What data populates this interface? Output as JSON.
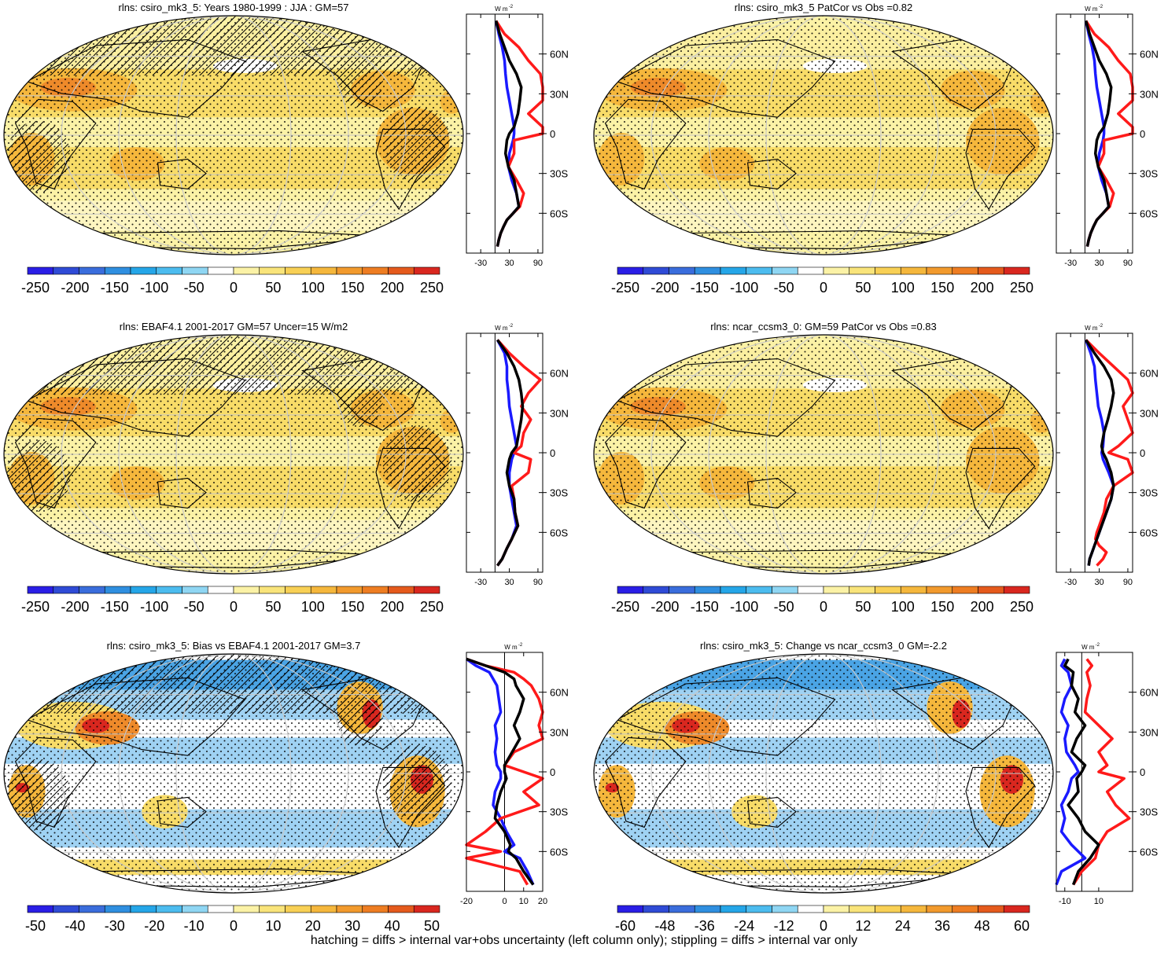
{
  "footnote": "hatching = diffs > internal var+obs uncertainty (left column only); stippling = diffs > internal var only",
  "colors": {
    "white": "#ffffff",
    "light_yellow": "#fbf2a6",
    "yellow": "#f8dc68",
    "orange": "#f5b73c",
    "dark_orange": "#ee8a2a",
    "red": "#d9271f",
    "light_blue": "#9fd2f3",
    "blue": "#4aa4e5",
    "zonal_black": "#000000",
    "zonal_blue": "#1a1aff",
    "zonal_red": "#ff1a1a",
    "graticule": "#c8c8c8"
  },
  "lat_ticks": [
    "60N",
    "30N",
    "0",
    "30S",
    "60S"
  ],
  "panels": [
    {
      "title": "rlns: csiro_mk3_5: Years 1980-1999 : JJA : GM=57",
      "scheme": "abs",
      "hatch": true,
      "colorbar": {
        "labels": [
          "-250",
          "-200",
          "-150",
          "-100",
          "-50",
          "0",
          "50",
          "100",
          "150",
          "200",
          "250"
        ]
      },
      "zonal": {
        "xlim": [
          -60,
          100
        ],
        "ticks": [
          "-30",
          "30",
          "90"
        ],
        "tick_values": [
          -30,
          30,
          90
        ],
        "zero_line": 0,
        "unit": "W m-2"
      }
    },
    {
      "title": "rlns: csiro_mk3_5 PatCor vs Obs =0.82",
      "scheme": "abs",
      "hatch": false,
      "colorbar": {
        "labels": [
          "-250",
          "-200",
          "-150",
          "-100",
          "-50",
          "0",
          "50",
          "100",
          "150",
          "200",
          "250"
        ]
      },
      "zonal": {
        "xlim": [
          -60,
          100
        ],
        "ticks": [
          "-30",
          "30",
          "90"
        ],
        "tick_values": [
          -30,
          30,
          90
        ],
        "zero_line": 0,
        "unit": "W m-2"
      }
    },
    {
      "title": "rlns: EBAF4.1 2001-2017 GM=57 Uncer=15 W/m2",
      "scheme": "abs",
      "hatch": true,
      "colorbar": {
        "labels": [
          "-250",
          "-200",
          "-150",
          "-100",
          "-50",
          "0",
          "50",
          "100",
          "150",
          "200",
          "250"
        ]
      },
      "zonal": {
        "xlim": [
          -60,
          100
        ],
        "ticks": [
          "-30",
          "30",
          "90"
        ],
        "tick_values": [
          -30,
          30,
          90
        ],
        "zero_line": 0,
        "unit": "W m-2"
      }
    },
    {
      "title": "rlns: ncar_ccsm3_0: GM=59 PatCor vs Obs =0.83",
      "scheme": "abs",
      "hatch": false,
      "colorbar": {
        "labels": [
          "-250",
          "-200",
          "-150",
          "-100",
          "-50",
          "0",
          "50",
          "100",
          "150",
          "200",
          "250"
        ]
      },
      "zonal": {
        "xlim": [
          -60,
          100
        ],
        "ticks": [
          "-30",
          "30",
          "90"
        ],
        "tick_values": [
          -30,
          30,
          90
        ],
        "zero_line": 0,
        "unit": "W m-2"
      }
    },
    {
      "title": "rlns: csiro_mk3_5: Bias vs EBAF4.1 2001-2017 GM=3.7",
      "scheme": "diff",
      "hatch": true,
      "colorbar": {
        "labels": [
          "-50",
          "-40",
          "-30",
          "-20",
          "-10",
          "0",
          "10",
          "20",
          "30",
          "40",
          "50"
        ]
      },
      "zonal": {
        "xlim": [
          -20,
          20
        ],
        "ticks": [
          "-20",
          "0",
          "10",
          "20"
        ],
        "tick_values": [
          -20,
          0,
          10,
          20
        ],
        "zero_line": 0,
        "unit": "W m-2"
      }
    },
    {
      "title": "rlns: csiro_mk3_5: Change vs ncar_ccsm3_0 GM=-2.2",
      "scheme": "diff",
      "hatch": false,
      "colorbar": {
        "labels": [
          "-60",
          "-48",
          "-36",
          "-24",
          "-12",
          "0",
          "12",
          "24",
          "36",
          "48",
          "60"
        ]
      },
      "zonal": {
        "xlim": [
          -15,
          30
        ],
        "ticks": [
          "-10",
          "10"
        ],
        "tick_values": [
          -10,
          10
        ],
        "zero_line": 0,
        "unit": "W m-2"
      }
    }
  ],
  "chart_data": [
    {
      "type": "line",
      "title": "rlns: csiro_mk3_5: Years 1980-1999 : JJA : GM=57",
      "xlabel": "W m-2",
      "ylabel": "",
      "xlim": [
        -60,
        100
      ],
      "ylim": [
        -90,
        90
      ],
      "series": [
        {
          "x": [
            2,
            10,
            20,
            30,
            45,
            55,
            52,
            48,
            40,
            30,
            25,
            22,
            28,
            40,
            45,
            50,
            38,
            25,
            18,
            12,
            8,
            5
          ],
          "y": [
            85,
            75,
            65,
            55,
            45,
            35,
            25,
            15,
            5,
            0,
            -5,
            -15,
            -25,
            -35,
            -45,
            -55,
            -60,
            -65,
            -70,
            -75,
            -80,
            -85
          ]
        },
        {
          "x": [
            2,
            8,
            15,
            20,
            22,
            25,
            30,
            35,
            40,
            40,
            38,
            30,
            28,
            35,
            45,
            50,
            38,
            25,
            18,
            12,
            8,
            5
          ],
          "y": [
            85,
            75,
            65,
            55,
            45,
            35,
            25,
            15,
            5,
            0,
            -5,
            -15,
            -25,
            -35,
            -45,
            -55,
            -60,
            -65,
            -70,
            -75,
            -80,
            -85
          ]
        },
        {
          "x": [
            2,
            20,
            50,
            70,
            95,
            100,
            100,
            70,
            100,
            100,
            40,
            40,
            28,
            45,
            60,
            52,
            38,
            25,
            18,
            12,
            8,
            5
          ],
          "y": [
            85,
            75,
            65,
            55,
            45,
            35,
            25,
            15,
            5,
            0,
            -5,
            -15,
            -25,
            -35,
            -45,
            -55,
            -60,
            -65,
            -70,
            -75,
            -80,
            -85
          ]
        }
      ]
    },
    {
      "type": "line",
      "title": "rlns: csiro_mk3_5 PatCor vs Obs =0.82",
      "xlabel": "W m-2",
      "ylabel": "",
      "xlim": [
        -60,
        100
      ],
      "ylim": [
        -90,
        90
      ],
      "series": [
        {
          "x": [
            2,
            10,
            20,
            30,
            45,
            55,
            52,
            48,
            40,
            30,
            25,
            22,
            28,
            40,
            45,
            50,
            38,
            25,
            18,
            12,
            8,
            5
          ],
          "y": [
            85,
            75,
            65,
            55,
            45,
            35,
            25,
            15,
            5,
            0,
            -5,
            -15,
            -25,
            -35,
            -45,
            -55,
            -60,
            -65,
            -70,
            -75,
            -80,
            -85
          ]
        },
        {
          "x": [
            2,
            8,
            15,
            20,
            22,
            25,
            30,
            35,
            40,
            40,
            38,
            30,
            28,
            35,
            45,
            50,
            38,
            25,
            18,
            12,
            8,
            5
          ],
          "y": [
            85,
            75,
            65,
            55,
            45,
            35,
            25,
            15,
            5,
            0,
            -5,
            -15,
            -25,
            -35,
            -45,
            -55,
            -60,
            -65,
            -70,
            -75,
            -80,
            -85
          ]
        },
        {
          "x": [
            2,
            20,
            50,
            70,
            95,
            100,
            100,
            70,
            100,
            100,
            40,
            40,
            28,
            45,
            60,
            52,
            38,
            25,
            18,
            12,
            8,
            5
          ],
          "y": [
            85,
            75,
            65,
            55,
            45,
            35,
            25,
            15,
            5,
            0,
            -5,
            -15,
            -25,
            -35,
            -45,
            -55,
            -60,
            -65,
            -70,
            -75,
            -80,
            -85
          ]
        }
      ]
    },
    {
      "type": "line",
      "title": "rlns: EBAF4.1 2001-2017 GM=57 Uncer=15 W/m2",
      "xlabel": "W m-2",
      "ylabel": "",
      "xlim": [
        -60,
        100
      ],
      "ylim": [
        -90,
        90
      ],
      "series": [
        {
          "x": [
            5,
            25,
            40,
            50,
            55,
            58,
            55,
            50,
            45,
            35,
            30,
            25,
            30,
            40,
            42,
            48,
            35,
            25,
            15,
            5
          ],
          "y": [
            85,
            75,
            65,
            55,
            45,
            35,
            25,
            15,
            5,
            0,
            -5,
            -15,
            -25,
            -35,
            -45,
            -55,
            -65,
            -72,
            -80,
            -85
          ]
        },
        {
          "x": [
            5,
            20,
            25,
            25,
            28,
            30,
            35,
            40,
            45,
            40,
            35,
            30,
            30,
            35,
            40,
            45,
            35,
            25,
            15,
            5
          ],
          "y": [
            85,
            75,
            65,
            55,
            45,
            35,
            25,
            15,
            5,
            0,
            -5,
            -15,
            -25,
            -35,
            -45,
            -55,
            -65,
            -72,
            -80,
            -85
          ]
        },
        {
          "x": [
            5,
            30,
            60,
            95,
            70,
            55,
            75,
            60,
            55,
            40,
            75,
            70,
            35,
            40,
            42,
            48,
            35,
            25,
            15,
            5
          ],
          "y": [
            85,
            75,
            65,
            55,
            45,
            35,
            25,
            15,
            5,
            0,
            -5,
            -15,
            -25,
            -35,
            -45,
            -55,
            -65,
            -72,
            -80,
            -85
          ]
        }
      ]
    },
    {
      "type": "line",
      "title": "rlns: ncar_ccsm3_0: GM=59 PatCor vs Obs =0.83",
      "xlabel": "W m-2",
      "ylabel": "",
      "xlim": [
        -60,
        100
      ],
      "ylim": [
        -90,
        90
      ],
      "series": [
        {
          "x": [
            2,
            20,
            40,
            55,
            60,
            55,
            48,
            40,
            35,
            38,
            45,
            55,
            60,
            55,
            45,
            35,
            30,
            25,
            20,
            15,
            10,
            8
          ],
          "y": [
            85,
            75,
            65,
            55,
            45,
            35,
            25,
            15,
            5,
            0,
            -5,
            -15,
            -25,
            -35,
            -45,
            -55,
            -60,
            -65,
            -70,
            -75,
            -80,
            -85
          ]
        },
        {
          "x": [
            2,
            12,
            20,
            22,
            25,
            28,
            35,
            40,
            38,
            35,
            38,
            50,
            60,
            55,
            45,
            35,
            30,
            25,
            20,
            15,
            10,
            8
          ],
          "y": [
            85,
            75,
            65,
            55,
            45,
            35,
            25,
            15,
            5,
            0,
            -5,
            -15,
            -25,
            -35,
            -45,
            -55,
            -60,
            -65,
            -70,
            -75,
            -80,
            -85
          ]
        },
        {
          "x": [
            2,
            30,
            60,
            90,
            100,
            80,
            90,
            100,
            70,
            50,
            90,
            100,
            60,
            45,
            40,
            30,
            25,
            22,
            30,
            45,
            38,
            25
          ],
          "y": [
            85,
            75,
            65,
            55,
            45,
            35,
            25,
            15,
            5,
            0,
            -5,
            -15,
            -25,
            -35,
            -45,
            -55,
            -60,
            -65,
            -70,
            -75,
            -80,
            -85
          ]
        }
      ]
    },
    {
      "type": "line",
      "title": "rlns: csiro_mk3_5: Bias vs EBAF4.1 2001-2017 GM=3.7",
      "xlabel": "W m-2",
      "ylabel": "",
      "xlim": [
        -20,
        20
      ],
      "ylim": [
        -90,
        90
      ],
      "series": [
        {
          "x": [
            -20,
            -10,
            0,
            5,
            6,
            10,
            8,
            5,
            8,
            4,
            0,
            0,
            1,
            -2,
            -4,
            -5,
            0,
            3,
            2,
            6,
            10,
            15
          ],
          "y": [
            85,
            80,
            75,
            70,
            65,
            55,
            45,
            35,
            25,
            15,
            5,
            0,
            -5,
            -15,
            -25,
            -35,
            -45,
            -55,
            -60,
            -65,
            -75,
            -85
          ]
        },
        {
          "x": [
            -20,
            -15,
            -8,
            -6,
            -4,
            -3,
            -2,
            -5,
            -4,
            -5,
            -4,
            -2,
            -2,
            -5,
            -6,
            -2,
            1,
            5,
            0,
            8,
            12,
            15
          ],
          "y": [
            85,
            80,
            75,
            70,
            65,
            55,
            45,
            35,
            25,
            15,
            5,
            0,
            -5,
            -15,
            -25,
            -35,
            -45,
            -55,
            -60,
            -65,
            -75,
            -85
          ]
        },
        {
          "x": [
            -20,
            -10,
            5,
            10,
            14,
            18,
            20,
            18,
            20,
            5,
            0,
            10,
            20,
            10,
            18,
            -2,
            -10,
            -20,
            -2,
            -20,
            8,
            12
          ],
          "y": [
            85,
            80,
            75,
            70,
            65,
            55,
            45,
            35,
            25,
            15,
            5,
            0,
            -5,
            -15,
            -25,
            -35,
            -45,
            -55,
            -60,
            -65,
            -75,
            -85
          ]
        }
      ]
    },
    {
      "type": "line",
      "title": "rlns: csiro_mk3_5: Change vs ncar_ccsm3_0 GM=-2.2",
      "xlabel": "W m-2",
      "ylabel": "",
      "xlim": [
        -15,
        30
      ],
      "ylim": [
        -90,
        90
      ],
      "series": [
        {
          "x": [
            -8,
            -10,
            -5,
            -6,
            -2,
            -4,
            2,
            -3,
            -6,
            2,
            0,
            -3,
            -2,
            -8,
            -2,
            2,
            10,
            5,
            -2,
            -5
          ],
          "y": [
            85,
            80,
            75,
            65,
            55,
            45,
            35,
            25,
            15,
            5,
            0,
            -5,
            -15,
            -25,
            -35,
            -45,
            -55,
            -65,
            -75,
            -85
          ]
        },
        {
          "x": [
            -10,
            -12,
            -8,
            -6,
            -10,
            -12,
            -8,
            -10,
            -9,
            -4,
            -2,
            -6,
            -8,
            -12,
            -10,
            -12,
            -6,
            2,
            -12,
            -15
          ],
          "y": [
            85,
            80,
            75,
            65,
            55,
            45,
            35,
            25,
            15,
            5,
            0,
            -5,
            -15,
            -25,
            -35,
            -45,
            -55,
            -65,
            -75,
            -85
          ]
        },
        {
          "x": [
            3,
            6,
            3,
            5,
            3,
            2,
            10,
            18,
            10,
            15,
            10,
            25,
            15,
            20,
            28,
            15,
            10,
            8,
            0,
            -5
          ],
          "y": [
            85,
            80,
            75,
            65,
            55,
            45,
            35,
            25,
            15,
            5,
            0,
            -5,
            -15,
            -25,
            -35,
            -45,
            -55,
            -65,
            -75,
            -85
          ]
        }
      ]
    }
  ]
}
